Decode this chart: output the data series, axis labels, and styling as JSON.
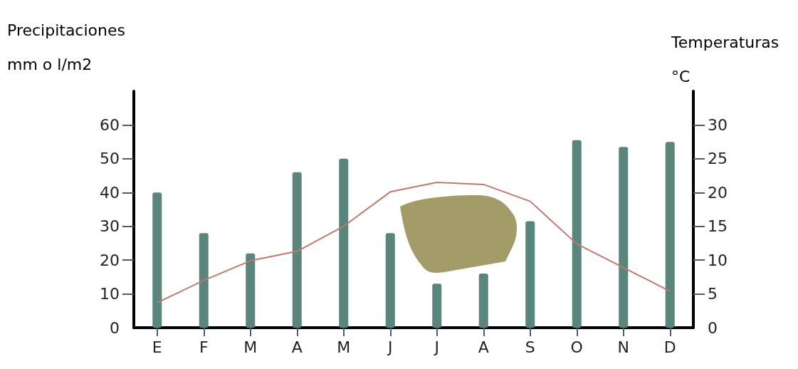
{
  "chart_data": {
    "type": "bar",
    "categories": [
      "E",
      "F",
      "M",
      "A",
      "M",
      "J",
      "J",
      "A",
      "S",
      "O",
      "N",
      "D"
    ],
    "ylabel": "Precipitaciones mm o l/m2",
    "y2label": "Temperaturas °C",
    "series": [
      {
        "color": "#5a857c",
        "values": [
          40,
          28,
          22,
          46,
          50,
          28,
          13,
          16,
          31.5,
          55.5,
          53.5,
          55
        ]
      },
      {
        "type": "line",
        "axis": "y2",
        "color": "#c07a6a",
        "values": [
          3.7,
          7,
          9.9,
          11.3,
          15,
          20.1,
          21.5,
          21.2,
          18.7,
          12.4,
          8.9,
          5.4
        ]
      }
    ],
    "ylim": [
      0,
      70
    ],
    "yticks": [
      0,
      10,
      20,
      30,
      40,
      50,
      60
    ],
    "y2lim": [
      0,
      35
    ],
    "y2ticks": [
      0,
      5,
      10,
      15,
      20,
      25,
      30
    ],
    "grid": false,
    "marker": "none",
    "line_style": "solid"
  }
}
